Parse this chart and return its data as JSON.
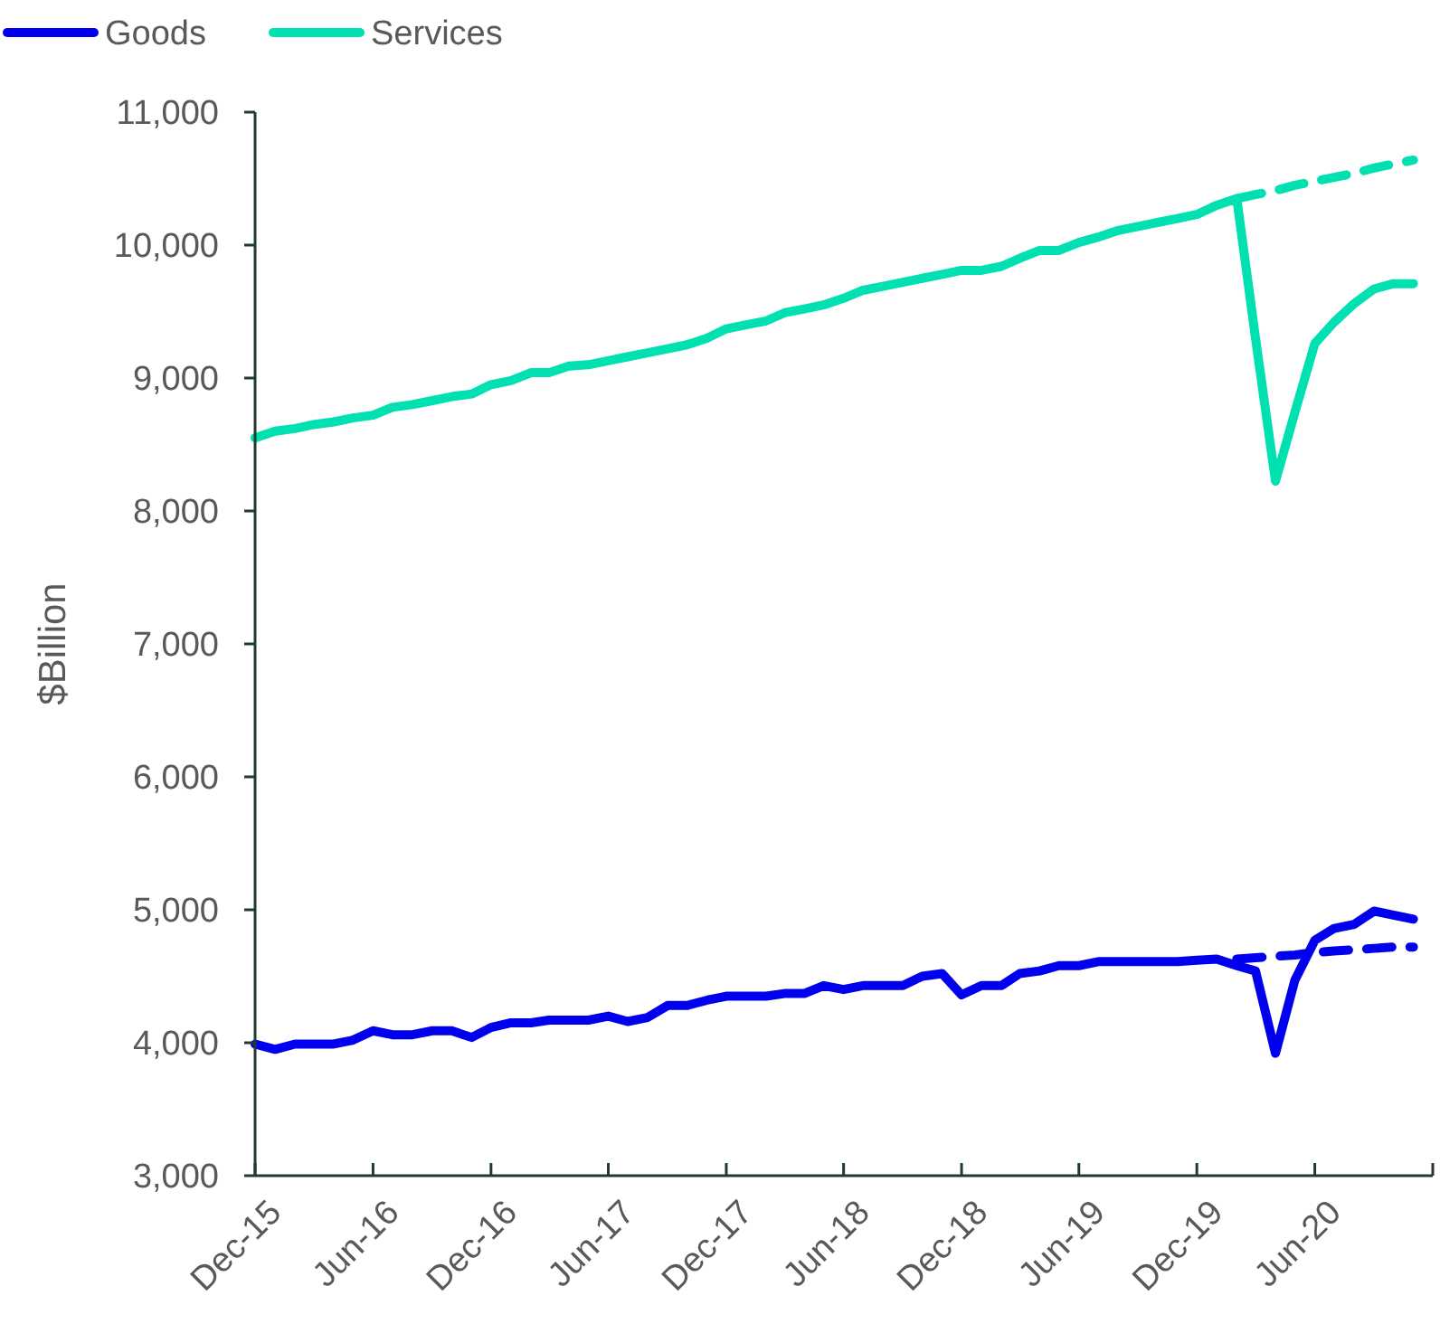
{
  "chart_data": {
    "type": "line",
    "ylabel": "$Billion",
    "legend": "top left",
    "grid": false,
    "xlim": [
      "2015-12",
      "2020-12"
    ],
    "xticks": [
      {
        "value": "2015-12",
        "label": "Dec-15"
      },
      {
        "value": "2016-06",
        "label": "Jun-16"
      },
      {
        "value": "2016-12",
        "label": "Dec-16"
      },
      {
        "value": "2017-06",
        "label": "Jun-17"
      },
      {
        "value": "2017-12",
        "label": "Dec-17"
      },
      {
        "value": "2018-06",
        "label": "Jun-18"
      },
      {
        "value": "2018-12",
        "label": "Dec-18"
      },
      {
        "value": "2019-06",
        "label": "Jun-19"
      },
      {
        "value": "2019-12",
        "label": "Dec-19"
      },
      {
        "value": "2020-06",
        "label": "Jun-20"
      },
      {
        "value": "2020-12",
        "label": null
      }
    ],
    "ylim": [
      3000,
      11000
    ],
    "yticks": [
      {
        "value": 3000,
        "label": "3,000"
      },
      {
        "value": 4000,
        "label": "4,000"
      },
      {
        "value": 5000,
        "label": "5,000"
      },
      {
        "value": 6000,
        "label": "6,000"
      },
      {
        "value": 7000,
        "label": "7,000"
      },
      {
        "value": 8000,
        "label": "8,000"
      },
      {
        "value": 9000,
        "label": "9,000"
      },
      {
        "value": 10000,
        "label": "10,000"
      },
      {
        "value": 11000,
        "label": "11,000"
      }
    ],
    "x": [
      "2015-12",
      "2016-01",
      "2016-02",
      "2016-03",
      "2016-04",
      "2016-05",
      "2016-06",
      "2016-07",
      "2016-08",
      "2016-09",
      "2016-10",
      "2016-11",
      "2016-12",
      "2017-01",
      "2017-02",
      "2017-03",
      "2017-04",
      "2017-05",
      "2017-06",
      "2017-07",
      "2017-08",
      "2017-09",
      "2017-10",
      "2017-11",
      "2017-12",
      "2018-01",
      "2018-02",
      "2018-03",
      "2018-04",
      "2018-05",
      "2018-06",
      "2018-07",
      "2018-08",
      "2018-09",
      "2018-10",
      "2018-11",
      "2018-12",
      "2019-01",
      "2019-02",
      "2019-03",
      "2019-04",
      "2019-05",
      "2019-06",
      "2019-07",
      "2019-08",
      "2019-09",
      "2019-10",
      "2019-11",
      "2019-12",
      "2020-01",
      "2020-02",
      "2020-03",
      "2020-04",
      "2020-05",
      "2020-06",
      "2020-07",
      "2020-08",
      "2020-09",
      "2020-10",
      "2020-11"
    ],
    "series": [
      {
        "name": "Goods",
        "color": "#0000ee",
        "line_style": "solid",
        "values": [
          3990,
          3950,
          3990,
          3990,
          3990,
          4020,
          4090,
          4060,
          4060,
          4090,
          4090,
          4040,
          4115,
          4150,
          4150,
          4170,
          4170,
          4170,
          4200,
          4160,
          4190,
          4280,
          4280,
          4320,
          4350,
          4350,
          4350,
          4370,
          4370,
          4430,
          4400,
          4430,
          4430,
          4430,
          4500,
          4520,
          4360,
          4430,
          4430,
          4520,
          4540,
          4580,
          4580,
          4610,
          4610,
          4610,
          4610,
          4610,
          4620,
          4630,
          4580,
          4540,
          3920,
          4470,
          4770,
          4860,
          4890,
          4990,
          4960,
          4930
        ]
      },
      {
        "name": "Services",
        "color": "#00e0b0",
        "line_style": "solid",
        "values": [
          8550,
          8600,
          8620,
          8650,
          8670,
          8700,
          8720,
          8780,
          8800,
          8830,
          8860,
          8880,
          8950,
          8980,
          9040,
          9040,
          9090,
          9100,
          9130,
          9160,
          9190,
          9220,
          9250,
          9300,
          9370,
          9400,
          9430,
          9490,
          9520,
          9550,
          9600,
          9660,
          9690,
          9720,
          9750,
          9780,
          9810,
          9810,
          9840,
          9900,
          9960,
          9960,
          10020,
          10060,
          10110,
          10140,
          10170,
          10200,
          10230,
          10300,
          10350,
          9300,
          8225,
          8740,
          9260,
          9420,
          9560,
          9670,
          9710,
          9710
        ]
      },
      {
        "color": "#0000ee",
        "line_style": "dashed",
        "x": [
          "2020-02",
          "2020-03",
          "2020-04",
          "2020-05",
          "2020-06",
          "2020-07",
          "2020-08",
          "2020-09",
          "2020-10",
          "2020-11"
        ],
        "values": [
          4630,
          4640,
          4650,
          4660,
          4680,
          4690,
          4700,
          4710,
          4720,
          4720
        ]
      },
      {
        "color": "#00e0b0",
        "line_style": "dashed",
        "x": [
          "2020-02",
          "2020-03",
          "2020-04",
          "2020-05",
          "2020-06",
          "2020-07",
          "2020-08",
          "2020-09",
          "2020-10",
          "2020-11"
        ],
        "values": [
          10350,
          10380,
          10410,
          10450,
          10480,
          10510,
          10540,
          10580,
          10610,
          10640
        ]
      }
    ]
  }
}
